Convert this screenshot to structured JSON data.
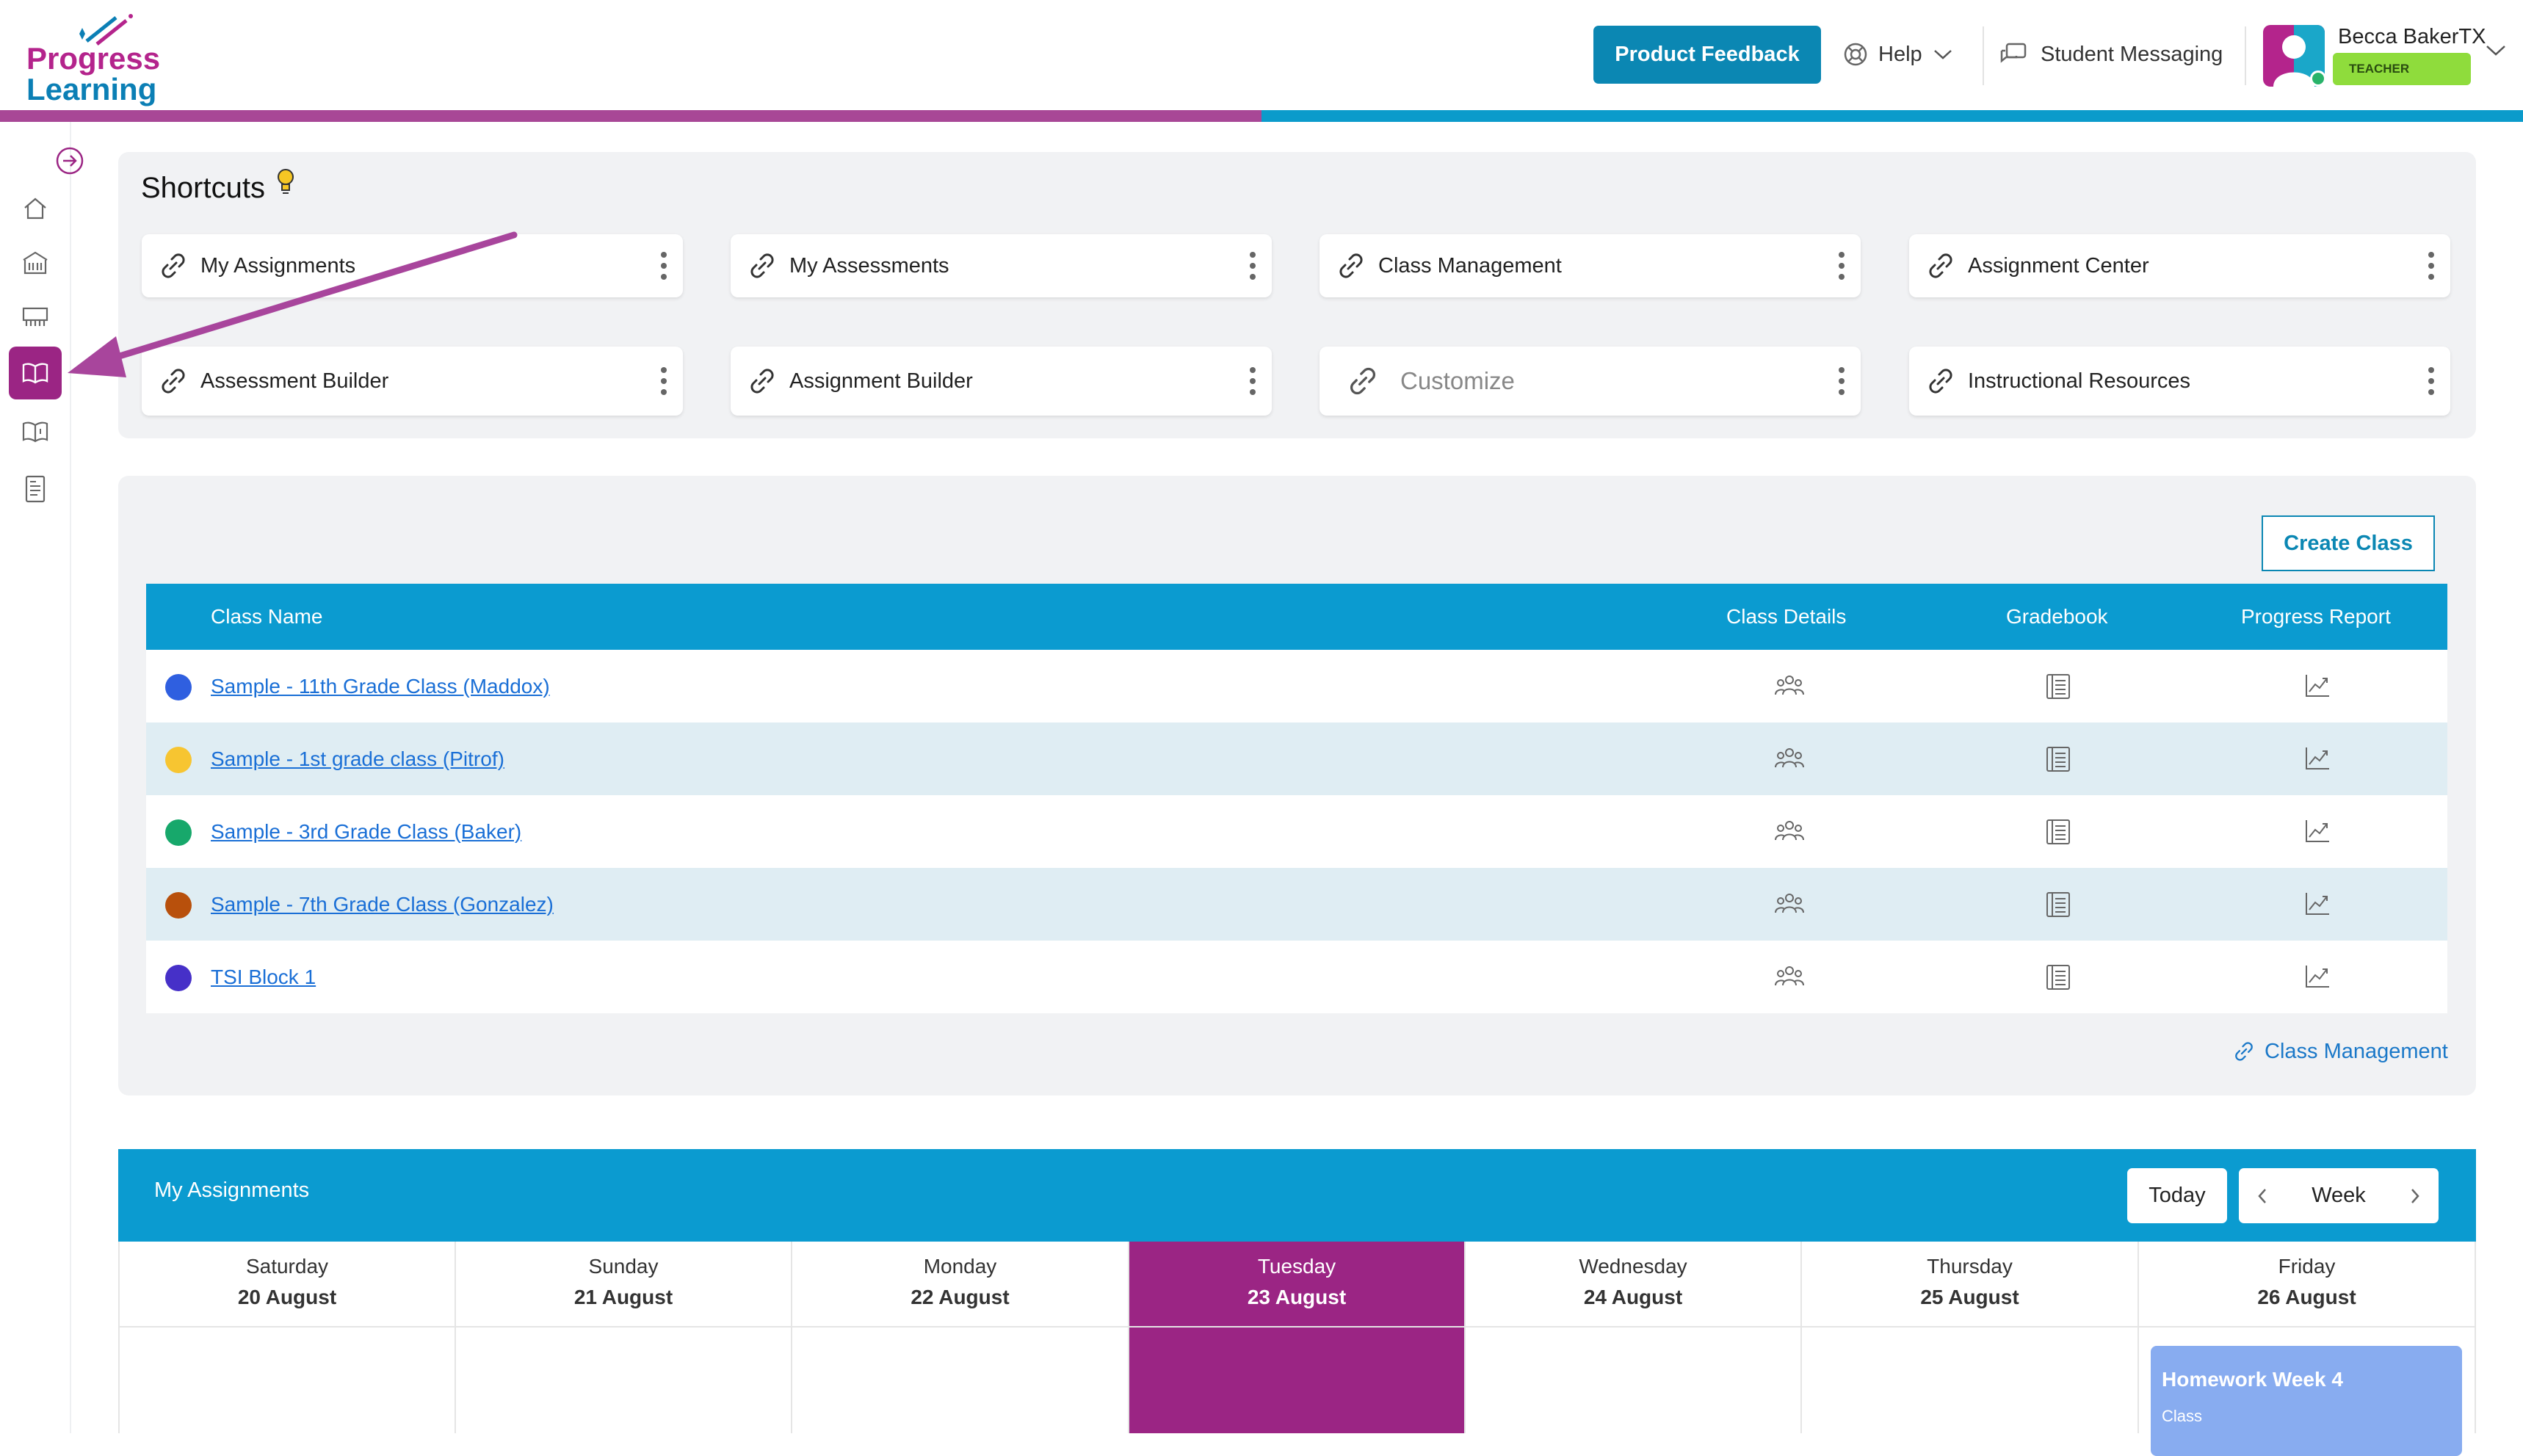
{
  "brand": {
    "line1": "Progress",
    "line2": "Learning",
    "pink": "#b4248c",
    "blue": "#0b7fb5"
  },
  "header": {
    "feedback_label": "Product Feedback",
    "help_label": "Help",
    "messaging_label": "Student Messaging",
    "user_name": "Becca BakerTX",
    "user_role": "TEACHER"
  },
  "sidebar": {
    "items": [
      "expand-icon",
      "home-icon",
      "school-icon",
      "classroom-icon",
      "book-open-icon",
      "book-icon",
      "report-icon"
    ],
    "active_index": 4
  },
  "shortcuts": {
    "title": "Shortcuts",
    "items": [
      {
        "label": "My Assignments"
      },
      {
        "label": "My Assessments"
      },
      {
        "label": "Class Management"
      },
      {
        "label": "Assignment Center"
      },
      {
        "label": "Assessment Builder"
      },
      {
        "label": "Assignment Builder"
      },
      {
        "label": "Customize"
      },
      {
        "label": "Instructional Resources"
      }
    ]
  },
  "classes": {
    "create_label": "Create Class",
    "columns": {
      "name": "Class Name",
      "details": "Class Details",
      "gradebook": "Gradebook",
      "progress": "Progress Report"
    },
    "rows": [
      {
        "name": "Sample - 11th Grade Class (Maddox)",
        "color": "#2f5fe0"
      },
      {
        "name": "Sample - 1st grade class (Pitrof)",
        "color": "#f7c531"
      },
      {
        "name": "Sample - 3rd Grade Class (Baker)",
        "color": "#17a86b"
      },
      {
        "name": "Sample - 7th Grade Class (Gonzalez)",
        "color": "#b8500c"
      },
      {
        "name": "TSI Block 1",
        "color": "#4630c8"
      }
    ],
    "footer_link": "Class Management"
  },
  "assignments": {
    "title": "My Assignments",
    "today_label": "Today",
    "view_label": "Week",
    "days": [
      {
        "name": "Saturday",
        "date": "20 August"
      },
      {
        "name": "Sunday",
        "date": "21 August"
      },
      {
        "name": "Monday",
        "date": "22 August"
      },
      {
        "name": "Tuesday",
        "date": "23 August"
      },
      {
        "name": "Wednesday",
        "date": "24 August"
      },
      {
        "name": "Thursday",
        "date": "25 August"
      },
      {
        "name": "Friday",
        "date": "26 August"
      }
    ],
    "active_day_index": 3,
    "event": {
      "title": "Homework Week 4",
      "subtitle": "Class"
    }
  },
  "colors": {
    "accent_purple": "#9b2584",
    "accent_blue": "#0b9bd0",
    "row_alt": "#dfedf3"
  }
}
